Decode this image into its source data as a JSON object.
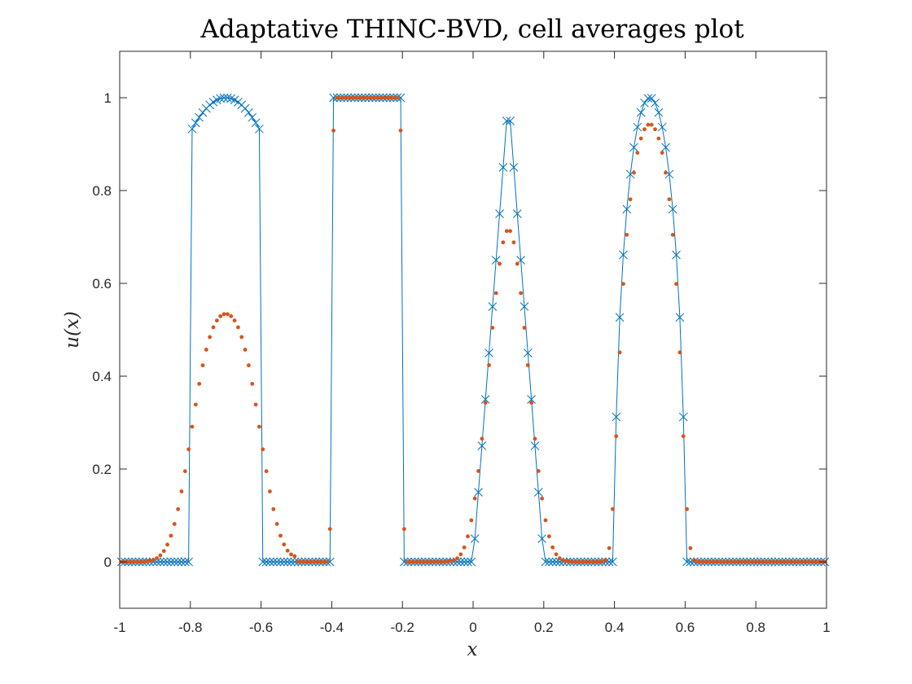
{
  "chart_data": {
    "type": "line",
    "title": "Adaptative THINC-BVD, cell averages plot",
    "xlabel": "x",
    "ylabel": "u(x)",
    "xlim": [
      -1,
      1
    ],
    "ylim": [
      -0.1,
      1.1
    ],
    "xticks": [
      "-1",
      "-0.8",
      "-0.6",
      "-0.4",
      "-0.2",
      "0",
      "0.2",
      "0.4",
      "0.6",
      "0.8",
      "1"
    ],
    "xtick_values": [
      -1,
      -0.8,
      -0.6,
      -0.4,
      -0.2,
      0,
      0.2,
      0.4,
      0.6,
      0.8,
      1
    ],
    "yticks": [
      "0",
      "0.2",
      "0.4",
      "0.6",
      "0.8",
      "1"
    ],
    "ytick_values": [
      0,
      0.2,
      0.4,
      0.6,
      0.8,
      1
    ],
    "grid": false,
    "legend": "none",
    "series": [
      {
        "kind": "exact-line-with-cross-markers",
        "color": "#0072BD",
        "cells": 200,
        "profile": [
          "gaussian pulse centred at -0.7 (peak 1.0)",
          "square pulse on [-0.4, -0.2] (height 1)",
          "triangle on [0, 0.2] (peak 1.0 at 0.1)",
          "half ellipse on [0.4, 0.6] (peak 1.0 at 0.5)"
        ]
      },
      {
        "kind": "cell-average-dots",
        "color": "#D95319",
        "cells": 200,
        "peaks": {
          "gaussian": 0.533,
          "square": 1.0,
          "triangle": 0.716,
          "ellipse": 0.943
        }
      }
    ]
  }
}
